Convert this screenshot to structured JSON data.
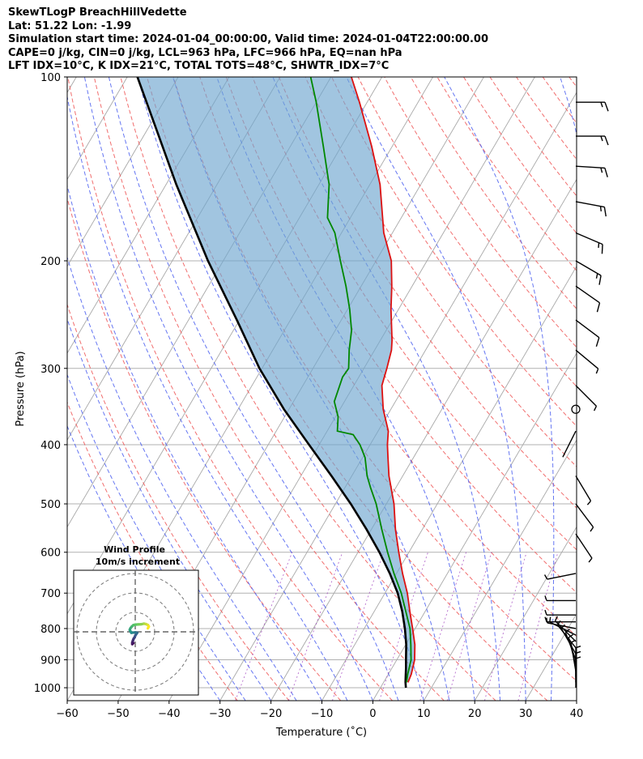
{
  "header": {
    "line1": "SkewTLogP BreachHillVedette",
    "line2": "Lat: 51.22   Lon: -1.99",
    "line3": "Simulation start time: 2024-01-04_00:00:00, Valid time: 2024-01-04T22:00:00.00",
    "line4": "CAPE=0 j/kg, CIN=0 j/kg, LCL=963 hPa, LFC=966 hPa, EQ=nan hPa",
    "line5": "LFT IDX=10°C, K IDX=21°C, TOTAL TOTS=48°C, SHWTR_IDX=7°C"
  },
  "chart_data": [
    {
      "type": "line",
      "subtype": "skew-T log-P",
      "xlabel": "Temperature (˚C)",
      "ylabel": "Pressure (hPa)",
      "xlim": [
        -60,
        40
      ],
      "ylim": [
        1050,
        100
      ],
      "x_ticks": [
        -60,
        -50,
        -40,
        -30,
        -20,
        -10,
        0,
        10,
        20,
        30,
        40
      ],
      "y_ticks": [
        100,
        200,
        300,
        400,
        500,
        600,
        700,
        800,
        900,
        1000
      ],
      "skew_deg_per_decade": 70.3,
      "series": [
        {
          "name": "temperature",
          "color": "#dd1111",
          "p": [
            980,
            950,
            900,
            850,
            800,
            750,
            700,
            650,
            600,
            550,
            500,
            450,
            420,
            400,
            380,
            350,
            320,
            300,
            280,
            270,
            240,
            220,
            200,
            180,
            150,
            130,
            110,
            100
          ],
          "t": [
            4.8,
            4.5,
            3.5,
            1.8,
            -0.5,
            -3,
            -5.6,
            -8.8,
            -12,
            -15.3,
            -18.5,
            -22.7,
            -25,
            -26.6,
            -28,
            -31.5,
            -34.5,
            -35.5,
            -36.7,
            -37.7,
            -41.5,
            -44,
            -47,
            -51.7,
            -58,
            -64,
            -71.5,
            -76
          ]
        },
        {
          "name": "dewpoint",
          "color": "#008800",
          "p": [
            980,
            950,
            900,
            850,
            800,
            750,
            700,
            650,
            600,
            550,
            500,
            470,
            450,
            420,
            400,
            385,
            380,
            360,
            340,
            310,
            300,
            280,
            260,
            240,
            220,
            200,
            180,
            170,
            150,
            130,
            110,
            100
          ],
          "t": [
            4.5,
            3.8,
            2.8,
            1,
            -1,
            -3.8,
            -6.8,
            -10.5,
            -14.2,
            -18,
            -22,
            -25,
            -27,
            -29.5,
            -32,
            -34.5,
            -38,
            -39.5,
            -42,
            -43.2,
            -43,
            -45,
            -46.8,
            -49.6,
            -53,
            -57,
            -61.3,
            -64.5,
            -68,
            -73.5,
            -80,
            -84
          ]
        },
        {
          "name": "parcel_path",
          "color": "#000000",
          "p": [
            1000,
            980,
            960,
            930,
            900,
            850,
            800,
            750,
            700,
            650,
            600,
            550,
            500,
            450,
            400,
            350,
            300,
            250,
            200,
            150,
            120,
            100
          ],
          "t": [
            5,
            4.3,
            3.7,
            2.8,
            1.8,
            0.1,
            -2,
            -4.5,
            -7.5,
            -11.3,
            -15.8,
            -21,
            -27,
            -34,
            -42,
            -51,
            -60.5,
            -70.5,
            -83,
            -98,
            -109,
            -118
          ]
        }
      ],
      "cape_shading": "CAPE/CIN area shaded light blue between parcel path and temperature",
      "wind_barbs": [
        {
          "p": 1000,
          "u": 0,
          "v": -3
        },
        {
          "p": 980,
          "u": 0,
          "v": -4
        },
        {
          "p": 960,
          "u": 0,
          "v": -5
        },
        {
          "p": 940,
          "u": 1,
          "v": -6
        },
        {
          "p": 920,
          "u": 2,
          "v": -8
        },
        {
          "p": 900,
          "u": 3,
          "v": -8
        },
        {
          "p": 880,
          "u": 4,
          "v": -7
        },
        {
          "p": 860,
          "u": 4,
          "v": -5
        },
        {
          "p": 840,
          "u": 4,
          "v": -4
        },
        {
          "p": 820,
          "u": 4,
          "v": -2
        },
        {
          "p": 800,
          "u": 5,
          "v": -1
        },
        {
          "p": 780,
          "u": 5,
          "v": 0
        },
        {
          "p": 760,
          "u": 6,
          "v": 0
        },
        {
          "p": 720,
          "u": 4,
          "v": 0
        },
        {
          "p": 650,
          "u": 5,
          "v": 1
        },
        {
          "p": 560,
          "u": -2,
          "v": 3
        },
        {
          "p": 500,
          "u": -3,
          "v": 4
        },
        {
          "p": 450,
          "u": -3,
          "v": 5
        },
        {
          "p": 380,
          "u": 1,
          "v": 2
        },
        {
          "p": 350,
          "u": 0,
          "v": 0
        },
        {
          "p": 320,
          "u": -5,
          "v": 5
        },
        {
          "p": 280,
          "u": -6,
          "v": 5
        },
        {
          "p": 250,
          "u": -8,
          "v": 6
        },
        {
          "p": 220,
          "u": -10,
          "v": 7
        },
        {
          "p": 200,
          "u": -12,
          "v": 7
        },
        {
          "p": 180,
          "u": -14,
          "v": 6
        },
        {
          "p": 160,
          "u": -16,
          "v": 3
        },
        {
          "p": 140,
          "u": -16,
          "v": 1
        },
        {
          "p": 125,
          "u": -17,
          "v": 0
        },
        {
          "p": 110,
          "u": -17,
          "v": 0
        }
      ]
    },
    {
      "type": "scatter",
      "subtype": "hodograph",
      "title": "Wind Profile",
      "subtitle": "10m/s increment",
      "ring_step_ms": 10,
      "rings": 3,
      "colormap": "viridis (low level dark purple → high level yellow)",
      "u": [
        -1,
        -1.5,
        -1.5,
        -1.2,
        -0.8,
        -0.3,
        0,
        0.5,
        1,
        0,
        -1,
        -2,
        -2.5,
        -2.8,
        -2.5,
        -1.8,
        -1,
        0,
        1.5,
        3,
        4.5,
        5.5,
        6.5,
        7,
        6.5
      ],
      "v": [
        -5.8,
        -6.3,
        -5.5,
        -4.5,
        -3.5,
        -2.8,
        -2,
        -1.2,
        -0.5,
        -0.3,
        -0.4,
        -0.5,
        0.3,
        1,
        1.8,
        2.7,
        3.4,
        3.7,
        3.8,
        3.9,
        4.2,
        4,
        3.5,
        2.7,
        1.8
      ]
    }
  ]
}
